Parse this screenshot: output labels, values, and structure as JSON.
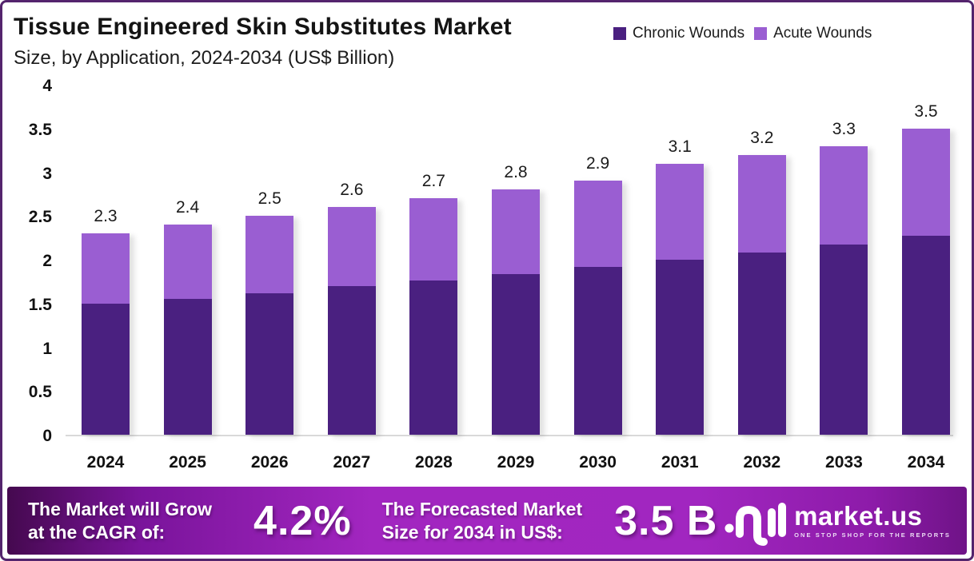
{
  "header": {
    "title": "Tissue Engineered Skin Substitutes  Market",
    "subtitle": "Size, by Application, 2024-2034 (US$ Billion)"
  },
  "legend": {
    "items": [
      {
        "label": "Chronic Wounds",
        "color": "#4a2080"
      },
      {
        "label": "Acute Wounds",
        "color": "#9a5ed2"
      }
    ]
  },
  "chart_data": {
    "type": "bar",
    "stacked": true,
    "title": "Tissue Engineered Skin Substitutes Market Size, by Application, 2024-2034 (US$ Billion)",
    "categories": [
      "2024",
      "2025",
      "2026",
      "2027",
      "2028",
      "2029",
      "2030",
      "2031",
      "2032",
      "2033",
      "2034"
    ],
    "series": [
      {
        "name": "Chronic Wounds",
        "color": "#4a2080",
        "values": [
          1.5,
          1.55,
          1.62,
          1.7,
          1.76,
          1.84,
          1.92,
          2.0,
          2.08,
          2.17,
          2.27
        ]
      },
      {
        "name": "Acute Wounds",
        "color": "#9a5ed2",
        "values": [
          0.8,
          0.85,
          0.88,
          0.9,
          0.94,
          0.96,
          0.98,
          1.1,
          1.12,
          1.13,
          1.23
        ]
      }
    ],
    "totals": [
      2.3,
      2.4,
      2.5,
      2.6,
      2.7,
      2.8,
      2.9,
      3.1,
      3.2,
      3.3,
      3.5
    ],
    "total_labels": [
      "2.3",
      "2.4",
      "2.5",
      "2.6",
      "2.7",
      "2.8",
      "2.9",
      "3.1",
      "3.2",
      "3.3",
      "3.5"
    ],
    "xlabel": "",
    "ylabel": "",
    "ylim": [
      0,
      4
    ],
    "yticks": [
      0,
      0.5,
      1,
      1.5,
      2,
      2.5,
      3,
      3.5,
      4
    ],
    "ytick_labels": [
      "0",
      "0.5",
      "1",
      "1.5",
      "2",
      "2.5",
      "3",
      "3.5",
      "4"
    ],
    "grid": false,
    "legend_position": "top-right"
  },
  "footer": {
    "cagr_label_line1": "The Market will Grow",
    "cagr_label_line2": "at the CAGR of:",
    "cagr_value": "4.2%",
    "forecast_label_line1": "The Forecasted Market",
    "forecast_label_line2": "Size for 2034 in US$:",
    "forecast_value": "3.5 B",
    "brand": {
      "name": "market.us",
      "tagline": "ONE STOP SHOP FOR THE REPORTS"
    }
  },
  "colors": {
    "chronic": "#4a2080",
    "acute": "#9a5ed2",
    "frame_border": "#54246d",
    "footer_gradient_start": "#45094f",
    "footer_gradient_mid": "#a226c0",
    "footer_gradient_end": "#6f1387"
  }
}
